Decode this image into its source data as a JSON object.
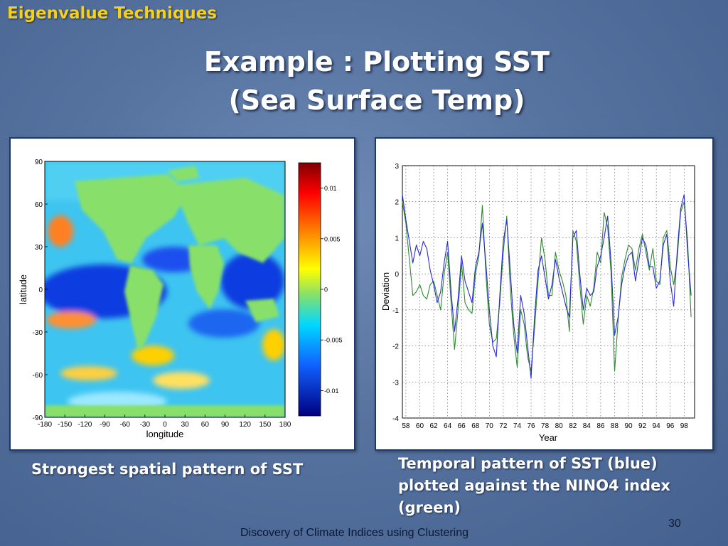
{
  "section_title": "Eigenvalue Techniques",
  "title_line1": "Example : Plotting SST",
  "title_line2": "(Sea Surface Temp)",
  "left_caption": "Strongest spatial pattern of SST",
  "right_caption_lines": [
    "Temporal pattern of SST (blue)",
    "plotted against the NINO4 index",
    "(green)"
  ],
  "footer": "Discovery of Climate Indices using Clustering",
  "slide_number": "30",
  "colors": {
    "title_yellow": "#f6d11a",
    "sst_blue": "#2a2ad6",
    "nino4_green": "#2e8b2e",
    "land_green": "#88e06a"
  },
  "chart_data": [
    {
      "type": "heatmap",
      "xlabel": "longitude",
      "ylabel": "latitude",
      "xticks": [
        "-180",
        "-150",
        "-120",
        "-90",
        "-60",
        "-30",
        "0",
        "30",
        "60",
        "90",
        "120",
        "150",
        "180"
      ],
      "yticks": [
        "90",
        "60",
        "30",
        "0",
        "-30",
        "-60",
        "-90"
      ],
      "xlim": [
        -180,
        180
      ],
      "ylim": [
        -90,
        90
      ],
      "colorbar": {
        "ticks": [
          "0.01",
          "0.005",
          "0",
          "-0.005",
          "-0.01"
        ],
        "range": [
          -0.0125,
          0.0125
        ]
      }
    },
    {
      "type": "line",
      "xlabel": "Year",
      "ylabel": "Deviation",
      "xticks": [
        "58",
        "60",
        "62",
        "64",
        "66",
        "68",
        "70",
        "72",
        "74",
        "76",
        "78",
        "80",
        "82",
        "84",
        "86",
        "88",
        "90",
        "92",
        "94",
        "96",
        "98"
      ],
      "yticks": [
        "3",
        "2",
        "1",
        "0",
        "-1",
        "-2",
        "-3",
        "-4"
      ],
      "xlim": [
        57.5,
        99.5
      ],
      "ylim": [
        -4,
        3
      ],
      "grid": true,
      "series": [
        {
          "color": "#2a2ad6",
          "x": [
            57.5,
            58,
            58.5,
            59,
            59.5,
            60,
            60.5,
            61,
            61.5,
            62,
            62.5,
            63,
            63.5,
            64,
            64.5,
            65,
            65.5,
            66,
            66.5,
            67,
            67.5,
            68,
            68.5,
            69,
            69.5,
            70,
            70.5,
            71,
            71.5,
            72,
            72.5,
            73,
            73.5,
            74,
            74.5,
            75,
            75.5,
            76,
            76.5,
            77,
            77.5,
            78,
            78.5,
            79,
            79.5,
            80,
            80.5,
            81,
            81.5,
            82,
            82.5,
            83,
            83.5,
            84,
            84.5,
            85,
            85.5,
            86,
            86.5,
            87,
            87.5,
            88,
            88.5,
            89,
            89.5,
            90,
            90.5,
            91,
            91.5,
            92,
            92.5,
            93,
            93.5,
            94,
            94.5,
            95,
            95.5,
            96,
            96.5,
            97,
            97.5,
            98,
            98.5,
            99
          ],
          "y": [
            2.2,
            1.5,
            0.9,
            0.3,
            0.8,
            0.5,
            0.9,
            0.7,
            0.1,
            -0.3,
            -0.8,
            -0.5,
            0.3,
            0.9,
            -0.5,
            -1.6,
            -0.7,
            0.5,
            -0.2,
            -0.5,
            -0.8,
            0.2,
            0.6,
            1.4,
            0.3,
            -1.0,
            -2.0,
            -2.3,
            -0.6,
            0.9,
            1.5,
            0.1,
            -1.4,
            -2.2,
            -0.6,
            -1.1,
            -2.0,
            -2.9,
            -1.2,
            0.1,
            0.5,
            -0.1,
            -0.7,
            -0.3,
            0.4,
            -0.1,
            -0.5,
            -0.9,
            -1.2,
            1.0,
            1.2,
            0.0,
            -1.0,
            -0.4,
            -0.6,
            -0.5,
            0.2,
            0.5,
            1.0,
            1.6,
            0.3,
            -1.7,
            -1.2,
            -0.3,
            0.2,
            0.5,
            0.6,
            -0.2,
            0.4,
            1.0,
            0.8,
            0.2,
            0.2,
            -0.4,
            -0.2,
            0.8,
            1.1,
            -0.2,
            -0.9,
            0.6,
            1.8,
            2.2,
            0.6,
            -0.6
          ]
        },
        {
          "color": "#2e8b2e",
          "x": [
            57.5,
            58,
            58.5,
            59,
            59.5,
            60,
            60.5,
            61,
            61.5,
            62,
            62.5,
            63,
            63.5,
            64,
            64.5,
            65,
            65.5,
            66,
            66.5,
            67,
            67.5,
            68,
            68.5,
            69,
            69.5,
            70,
            70.5,
            71,
            71.5,
            72,
            72.5,
            73,
            73.5,
            74,
            74.5,
            75,
            75.5,
            76,
            76.5,
            77,
            77.5,
            78,
            78.5,
            79,
            79.5,
            80,
            80.5,
            81,
            81.5,
            82,
            82.5,
            83,
            83.5,
            84,
            84.5,
            85,
            85.5,
            86,
            86.5,
            87,
            87.5,
            88,
            88.5,
            89,
            89.5,
            90,
            90.5,
            91,
            91.5,
            92,
            92.5,
            93,
            93.5,
            94,
            94.5,
            95,
            95.5,
            96,
            96.5,
            97,
            97.5,
            98,
            98.5,
            99
          ],
          "y": [
            2.0,
            1.4,
            0.4,
            -0.6,
            -0.5,
            -0.3,
            -0.6,
            -0.7,
            -0.3,
            -0.2,
            -0.6,
            -1.0,
            0.0,
            0.6,
            -0.8,
            -2.1,
            -1.0,
            0.3,
            -0.8,
            -1.0,
            -1.1,
            0.0,
            0.5,
            1.9,
            0.0,
            -1.4,
            -1.9,
            -1.8,
            -0.8,
            0.6,
            1.6,
            -0.4,
            -1.7,
            -2.6,
            -1.0,
            -1.4,
            -2.3,
            -2.7,
            -1.5,
            -0.2,
            1.0,
            0.4,
            -0.6,
            -0.6,
            0.6,
            0.1,
            -0.2,
            -0.6,
            -1.6,
            1.2,
            0.9,
            -0.3,
            -1.4,
            -0.6,
            -0.9,
            -0.4,
            0.6,
            0.3,
            1.7,
            1.3,
            0.0,
            -2.7,
            -1.3,
            -0.1,
            0.4,
            0.8,
            0.7,
            0.1,
            0.7,
            1.1,
            0.6,
            0.1,
            0.7,
            -0.2,
            -0.3,
            1.0,
            1.2,
            0.2,
            -0.3,
            0.4,
            1.7,
            2.0,
            0.9,
            -1.2
          ]
        }
      ]
    }
  ]
}
